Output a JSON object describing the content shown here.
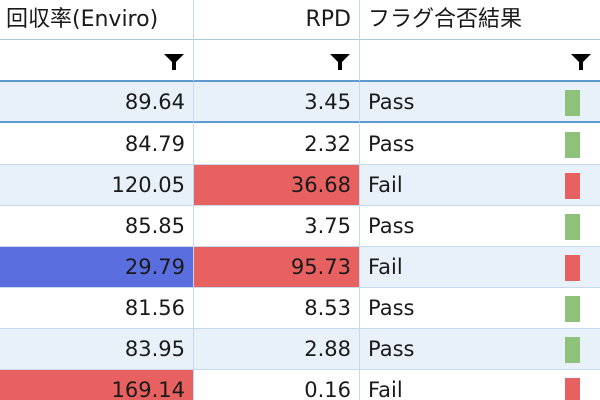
{
  "table": {
    "columns": [
      {
        "label": "回収率(Enviro)"
      },
      {
        "label": "RPD"
      },
      {
        "label": "フラグ合否結果"
      }
    ],
    "rows": [
      {
        "recovery": "89.64",
        "rpd": "3.45",
        "result": "Pass"
      },
      {
        "recovery": "84.79",
        "rpd": "2.32",
        "result": "Pass"
      },
      {
        "recovery": "120.05",
        "rpd": "36.68",
        "result": "Fail"
      },
      {
        "recovery": "85.85",
        "rpd": "3.75",
        "result": "Pass"
      },
      {
        "recovery": "29.79",
        "rpd": "95.73",
        "result": "Fail"
      },
      {
        "recovery": "81.56",
        "rpd": "8.53",
        "result": "Pass"
      },
      {
        "recovery": "83.95",
        "rpd": "2.88",
        "result": "Pass"
      },
      {
        "recovery": "169.14",
        "rpd": "0.16",
        "result": "Fail"
      }
    ]
  },
  "colors": {
    "pass_flag": "#8ec27a",
    "fail_flag": "#e86161",
    "highlight_high": "#e86161",
    "highlight_low": "#5b6ee0",
    "row_alt": "#e8f1f9",
    "grid_line": "#c7d9ea",
    "accent_line": "#5f9bd0"
  },
  "icons": {
    "filter": "filter-funnel-icon"
  }
}
